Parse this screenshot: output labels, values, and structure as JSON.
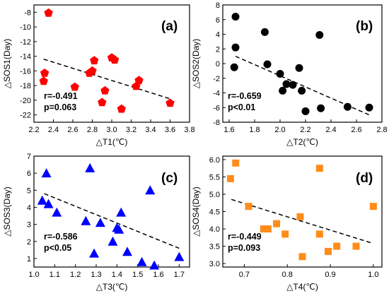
{
  "chart_data": [
    {
      "type": "scatter",
      "panel_label": "(a)",
      "xlabel": "△T1(℃)",
      "ylabel": "△SOS1(Day)",
      "xlim": [
        2.2,
        3.8
      ],
      "ylim": [
        -23,
        -7
      ],
      "xticks": [
        2.2,
        2.4,
        2.6,
        2.8,
        3.0,
        3.2,
        3.4,
        3.6,
        3.8
      ],
      "yticks": [
        -22,
        -20,
        -18,
        -16,
        -14,
        -12,
        -10,
        -8
      ],
      "marker": "pentagon",
      "color": "#ff0000",
      "points": [
        {
          "x": 2.3,
          "y": -17.4
        },
        {
          "x": 2.31,
          "y": -16.3
        },
        {
          "x": 2.35,
          "y": -8.1
        },
        {
          "x": 2.62,
          "y": -18.2
        },
        {
          "x": 2.77,
          "y": -16.3
        },
        {
          "x": 2.8,
          "y": -16.0
        },
        {
          "x": 2.82,
          "y": -14.6
        },
        {
          "x": 2.9,
          "y": -20.3
        },
        {
          "x": 2.93,
          "y": -18.7
        },
        {
          "x": 3.0,
          "y": -14.2
        },
        {
          "x": 3.03,
          "y": -14.5
        },
        {
          "x": 3.1,
          "y": -21.2
        },
        {
          "x": 3.25,
          "y": -18.1
        },
        {
          "x": 3.28,
          "y": -17.3
        },
        {
          "x": 3.6,
          "y": -20.4
        }
      ],
      "trend": {
        "x": [
          2.3,
          3.6
        ],
        "y": [
          -14.4,
          -19.8
        ]
      },
      "stats": {
        "r": "r=-0.491",
        "p": "p=0.063"
      }
    },
    {
      "type": "scatter",
      "panel_label": "(b)",
      "xlabel": "△T2(℃)",
      "ylabel": "△SOS2(Day)",
      "xlim": [
        1.55,
        2.8
      ],
      "ylim": [
        -8,
        8
      ],
      "xticks": [
        1.6,
        1.8,
        2.0,
        2.2,
        2.4,
        2.6,
        2.8
      ],
      "yticks": [
        -8,
        -6,
        -4,
        -2,
        0,
        2,
        4,
        6,
        8
      ],
      "marker": "circle",
      "color": "#000000",
      "points": [
        {
          "x": 1.65,
          "y": 6.4
        },
        {
          "x": 1.65,
          "y": 2.2
        },
        {
          "x": 1.64,
          "y": -0.5
        },
        {
          "x": 1.88,
          "y": 4.3
        },
        {
          "x": 1.9,
          "y": -0.1
        },
        {
          "x": 2.0,
          "y": -1.4
        },
        {
          "x": 2.02,
          "y": -3.7
        },
        {
          "x": 2.05,
          "y": -2.8
        },
        {
          "x": 2.1,
          "y": -2.9
        },
        {
          "x": 2.15,
          "y": -0.6
        },
        {
          "x": 2.17,
          "y": -3.7
        },
        {
          "x": 2.2,
          "y": -6.5
        },
        {
          "x": 2.31,
          "y": 3.9
        },
        {
          "x": 2.32,
          "y": -6.1
        },
        {
          "x": 2.53,
          "y": -5.9
        },
        {
          "x": 2.7,
          "y": -6.0
        }
      ],
      "trend": {
        "x": [
          1.65,
          2.7
        ],
        "y": [
          1.0,
          -7.0
        ]
      },
      "stats": {
        "r": "r=-0.659",
        "p": "p<0.01"
      }
    },
    {
      "type": "scatter",
      "panel_label": "(c)",
      "xlabel": "△T3(℃)",
      "ylabel": "△SOS3(Day)",
      "xlim": [
        1.0,
        1.75
      ],
      "ylim": [
        0.5,
        7
      ],
      "xticks": [
        1.0,
        1.1,
        1.2,
        1.3,
        1.4,
        1.5,
        1.6,
        1.7
      ],
      "yticks": [
        1,
        2,
        3,
        4,
        5,
        6,
        7
      ],
      "marker": "triangle",
      "color": "#0000ff",
      "points": [
        {
          "x": 1.04,
          "y": 4.4
        },
        {
          "x": 1.06,
          "y": 6.0
        },
        {
          "x": 1.07,
          "y": 4.2
        },
        {
          "x": 1.11,
          "y": 3.7
        },
        {
          "x": 1.25,
          "y": 3.2
        },
        {
          "x": 1.27,
          "y": 6.3
        },
        {
          "x": 1.29,
          "y": 1.3
        },
        {
          "x": 1.32,
          "y": 3.1
        },
        {
          "x": 1.38,
          "y": 2.0
        },
        {
          "x": 1.4,
          "y": 2.8
        },
        {
          "x": 1.41,
          "y": 2.7
        },
        {
          "x": 1.42,
          "y": 3.7
        },
        {
          "x": 1.45,
          "y": 1.4
        },
        {
          "x": 1.52,
          "y": 0.8
        },
        {
          "x": 1.56,
          "y": 5.0
        },
        {
          "x": 1.58,
          "y": 0.6
        },
        {
          "x": 1.7,
          "y": 1.1
        }
      ],
      "trend": {
        "x": [
          1.05,
          1.7
        ],
        "y": [
          4.8,
          1.6
        ]
      },
      "stats": {
        "r": "r=-0.586",
        "p": "p<0.05"
      }
    },
    {
      "type": "scatter",
      "panel_label": "(d)",
      "xlabel": "△T4(℃)",
      "ylabel": "△SOS4(Day)",
      "xlim": [
        0.65,
        1.02
      ],
      "ylim": [
        2.9,
        6.1
      ],
      "xticks": [
        0.7,
        0.8,
        0.9,
        1.0
      ],
      "yticks": [
        3.0,
        3.5,
        4.0,
        4.5,
        5.0,
        5.5,
        6.0
      ],
      "marker": "square",
      "color": "#ff8c1a",
      "points": [
        {
          "x": 0.668,
          "y": 5.45
        },
        {
          "x": 0.68,
          "y": 5.9
        },
        {
          "x": 0.71,
          "y": 4.65
        },
        {
          "x": 0.745,
          "y": 4.0
        },
        {
          "x": 0.755,
          "y": 4.0
        },
        {
          "x": 0.775,
          "y": 4.15
        },
        {
          "x": 0.795,
          "y": 3.85
        },
        {
          "x": 0.83,
          "y": 4.35
        },
        {
          "x": 0.835,
          "y": 3.2
        },
        {
          "x": 0.875,
          "y": 5.75
        },
        {
          "x": 0.875,
          "y": 3.85
        },
        {
          "x": 0.895,
          "y": 3.35
        },
        {
          "x": 0.915,
          "y": 3.5
        },
        {
          "x": 0.96,
          "y": 3.5
        },
        {
          "x": 1.0,
          "y": 4.65
        }
      ],
      "trend": {
        "x": [
          0.67,
          1.0
        ],
        "y": [
          4.85,
          3.58
        ]
      },
      "stats": {
        "r": "r=-0.449",
        "p": "p=0.093"
      }
    }
  ]
}
